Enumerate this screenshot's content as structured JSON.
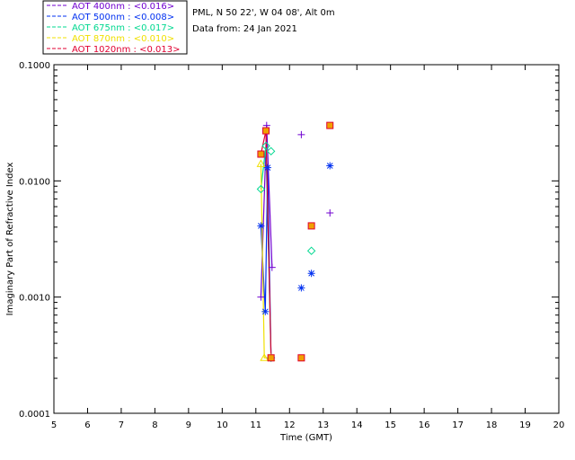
{
  "chart_data": {
    "type": "scatter",
    "title": "",
    "site_line": "PML, N 50 22', W 04 08', Alt 0m",
    "date_line": "Data from: 24 Jan 2021",
    "xlabel": "Time (GMT)",
    "ylabel": "Imaginary Part of Refractive Index",
    "xlim": [
      5,
      20
    ],
    "ylim": [
      0.0001,
      0.1
    ],
    "yscale": "log",
    "xticks": [
      "5",
      "6",
      "7",
      "8",
      "9",
      "10",
      "11",
      "12",
      "13",
      "14",
      "15",
      "16",
      "17",
      "18",
      "19",
      "20"
    ],
    "yticks": [
      "0.0001",
      "0.0010",
      "0.0100",
      "0.1000"
    ],
    "legend": [
      {
        "label": "AOT  400nm : <0.016>",
        "color": "#7000d0"
      },
      {
        "label": "AOT  500nm : <0.008>",
        "color": "#0030f0"
      },
      {
        "label": "AOT  675nm : <0.017>",
        "color": "#00d890"
      },
      {
        "label": "AOT  870nm : <0.010>",
        "color": "#f0e000"
      },
      {
        "label": "AOT 1020nm : <0.013>",
        "color": "#e00030"
      }
    ],
    "series": [
      {
        "name": "400nm",
        "marker": "plus",
        "color": "#7000d0",
        "line": [
          [
            11.15,
            0.001
          ],
          [
            11.32,
            0.03
          ],
          [
            11.48,
            0.0018
          ]
        ],
        "points": [
          [
            11.15,
            0.001
          ],
          [
            11.32,
            0.03
          ],
          [
            11.48,
            0.0018
          ],
          [
            12.35,
            0.025
          ],
          [
            13.2,
            0.0053
          ]
        ]
      },
      {
        "name": "500nm",
        "marker": "asterisk",
        "color": "#0030f0",
        "line": [
          [
            11.15,
            0.0041
          ],
          [
            11.28,
            0.00075
          ],
          [
            11.35,
            0.013
          ],
          [
            11.45,
            0.0003
          ]
        ],
        "points": [
          [
            11.15,
            0.0041
          ],
          [
            11.28,
            0.00075
          ],
          [
            11.35,
            0.013
          ],
          [
            11.45,
            0.0003
          ],
          [
            12.35,
            0.0012
          ],
          [
            12.65,
            0.0016
          ],
          [
            13.2,
            0.0135
          ]
        ]
      },
      {
        "name": "675nm",
        "marker": "diamond",
        "color": "#00d890",
        "line": [
          [
            11.15,
            0.0085
          ],
          [
            11.3,
            0.02
          ],
          [
            11.45,
            0.0003
          ]
        ],
        "points": [
          [
            11.15,
            0.0085
          ],
          [
            11.3,
            0.02
          ],
          [
            11.45,
            0.018
          ],
          [
            11.45,
            0.0003
          ],
          [
            12.65,
            0.0025
          ]
        ]
      },
      {
        "name": "870nm",
        "marker": "triangle",
        "color": "#f0e000",
        "line": [
          [
            11.15,
            0.014
          ],
          [
            11.25,
            0.0003
          ],
          [
            11.45,
            0.0003
          ]
        ],
        "points": [
          [
            11.15,
            0.014
          ],
          [
            11.25,
            0.0003
          ],
          [
            11.45,
            0.0003
          ]
        ]
      },
      {
        "name": "1020nm",
        "marker": "square",
        "color": "#e00030",
        "line": [
          [
            11.15,
            0.017
          ],
          [
            11.3,
            0.027
          ],
          [
            11.45,
            0.0003
          ]
        ],
        "points": [
          [
            11.15,
            0.017
          ],
          [
            11.3,
            0.027
          ],
          [
            11.45,
            0.0003
          ],
          [
            12.35,
            0.0003
          ],
          [
            12.65,
            0.0041
          ],
          [
            13.2,
            0.03
          ]
        ]
      }
    ],
    "square_fill": "#f0a000"
  }
}
